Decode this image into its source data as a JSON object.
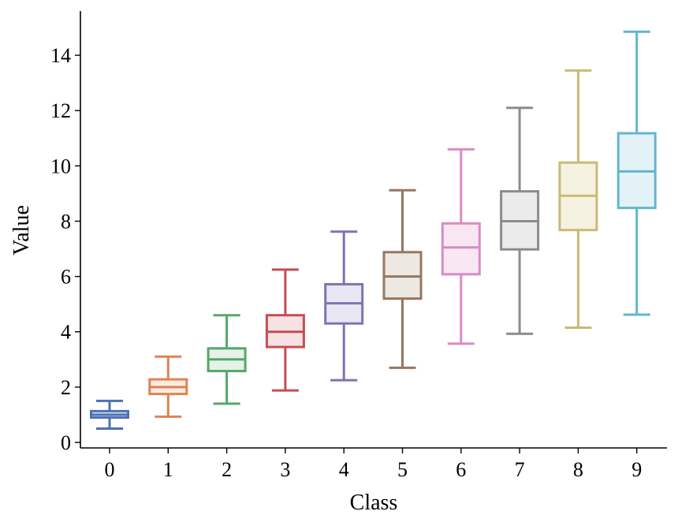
{
  "chart_data": {
    "type": "box",
    "xlabel": "Class",
    "ylabel": "Value",
    "ylim": [
      -0.2,
      15.6
    ],
    "yticks": [
      0,
      2,
      4,
      6,
      8,
      10,
      12,
      14
    ],
    "grid": false,
    "legend": "none",
    "categories": [
      "0",
      "1",
      "2",
      "3",
      "4",
      "5",
      "6",
      "7",
      "8",
      "9"
    ],
    "boxes": [
      {
        "category": "0",
        "whisker_low": 0.5,
        "q1": 0.9,
        "median": 1.0,
        "q3": 1.13,
        "whisker_high": 1.5,
        "color": "#4c72b0",
        "fill": "#e3e8f2"
      },
      {
        "category": "1",
        "whisker_low": 0.93,
        "q1": 1.75,
        "median": 2.0,
        "q3": 2.28,
        "whisker_high": 3.1,
        "color": "#dd8452",
        "fill": "#fbece3"
      },
      {
        "category": "2",
        "whisker_low": 1.4,
        "q1": 2.58,
        "median": 3.0,
        "q3": 3.4,
        "whisker_high": 4.6,
        "color": "#55a868",
        "fill": "#e5f2e8"
      },
      {
        "category": "3",
        "whisker_low": 1.88,
        "q1": 3.45,
        "median": 4.0,
        "q3": 4.6,
        "whisker_high": 6.25,
        "color": "#c44e52",
        "fill": "#f6e2e3"
      },
      {
        "category": "4",
        "whisker_low": 2.25,
        "q1": 4.3,
        "median": 5.03,
        "q3": 5.72,
        "whisker_high": 7.62,
        "color": "#8172b3",
        "fill": "#e9e7f3"
      },
      {
        "category": "5",
        "whisker_low": 2.7,
        "q1": 5.2,
        "median": 6.0,
        "q3": 6.88,
        "whisker_high": 9.12,
        "color": "#937860",
        "fill": "#eee8e2"
      },
      {
        "category": "6",
        "whisker_low": 3.57,
        "q1": 6.08,
        "median": 7.05,
        "q3": 7.92,
        "whisker_high": 10.6,
        "color": "#da8bc3",
        "fill": "#f8e7f2"
      },
      {
        "category": "7",
        "whisker_low": 3.93,
        "q1": 6.98,
        "median": 8.0,
        "q3": 9.08,
        "whisker_high": 12.1,
        "color": "#8c8c8c",
        "fill": "#ebebeb"
      },
      {
        "category": "8",
        "whisker_low": 4.15,
        "q1": 7.68,
        "median": 8.92,
        "q3": 10.12,
        "whisker_high": 13.45,
        "color": "#ccb974",
        "fill": "#f6f2e2"
      },
      {
        "category": "9",
        "whisker_low": 4.62,
        "q1": 8.48,
        "median": 9.8,
        "q3": 11.18,
        "whisker_high": 14.85,
        "color": "#64b5cd",
        "fill": "#e3f2f7"
      }
    ]
  }
}
